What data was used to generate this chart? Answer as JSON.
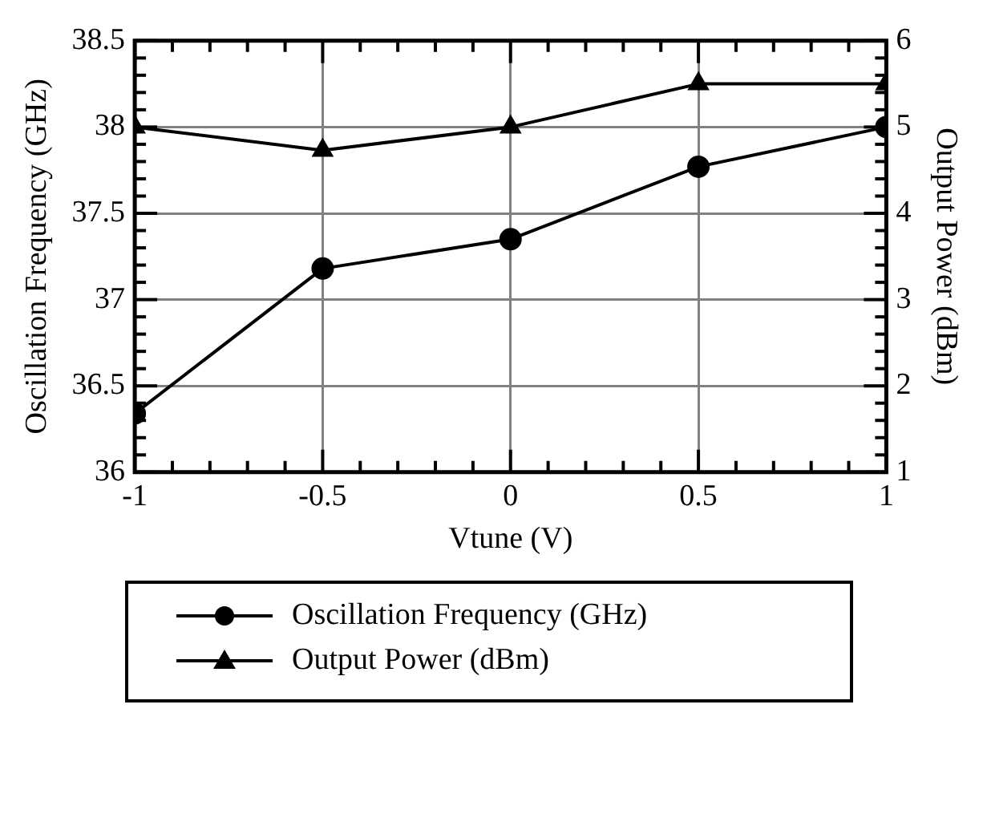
{
  "chart_data": {
    "type": "line",
    "xlabel": "Vtune (V)",
    "ylabel": "Oscillation Frequency (GHz)",
    "y2label": "Output Power (dBm)",
    "x": [
      -1,
      -0.5,
      0,
      0.5,
      1
    ],
    "series": [
      {
        "name": "Oscillation Frequency (GHz)",
        "color": "#000000",
        "marker": "circle",
        "values": [
          36.34,
          37.18,
          37.35,
          37.77,
          38.0
        ]
      },
      {
        "name": "Output Power (dBm)",
        "color": "#000000",
        "marker": "triangle",
        "axis": "y2",
        "values": [
          5.0,
          4.73,
          5.0,
          5.5,
          5.5
        ]
      }
    ],
    "xlim": [
      -1,
      1
    ],
    "xticks": [
      -1,
      -0.5,
      0,
      0.5,
      1
    ],
    "ylim": [
      36,
      38.5
    ],
    "yticks": [
      36,
      36.5,
      37,
      37.5,
      38,
      38.5
    ],
    "y2lim": [
      1,
      6
    ],
    "y2ticks": [
      1,
      2,
      3,
      4,
      5,
      6
    ],
    "grid": true,
    "legend": "bottom",
    "line_style": "solid"
  }
}
